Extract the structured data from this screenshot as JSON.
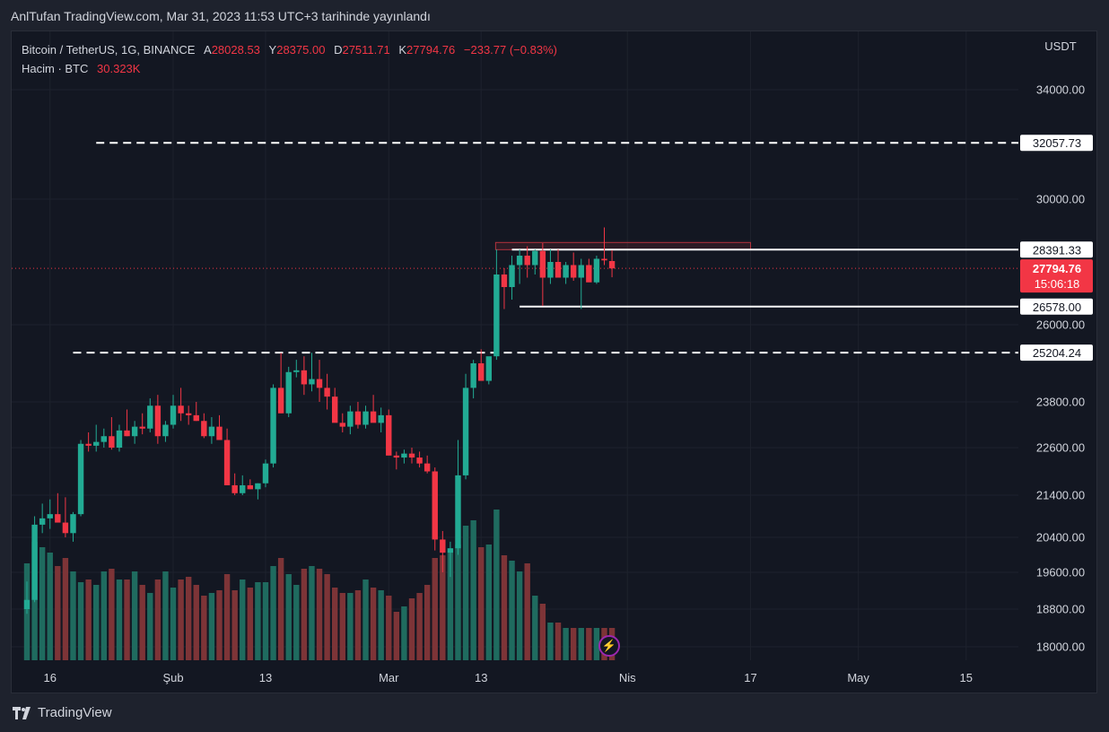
{
  "header": {
    "publish_caption": "AnlTufan TradingView.com, Mar 31, 2023 11:53 UTC+3 tarihinde yayınlandı"
  },
  "legend": {
    "symbol": "Bitcoin / TetherUS, 1G, BINANCE",
    "open_label": "A",
    "open": "28028.53",
    "high_label": "Y",
    "high": "28375.00",
    "low_label": "D",
    "low": "27511.71",
    "close_label": "K",
    "close": "27794.76",
    "change": "−233.77 (−0.83%)",
    "volume_label": "Hacim · BTC",
    "volume": "30.323K"
  },
  "footer": {
    "brand": "TradingView"
  },
  "colors": {
    "up": "#22ab94",
    "down": "#f23645",
    "up_vol": "#1f6b5f",
    "down_vol": "#7d3437",
    "grid": "#1e222d",
    "text": "#d1d4dc"
  },
  "chart_data": {
    "type": "candlestick",
    "axis_currency": "USDT",
    "y_ticks": [
      "34000.00",
      "30000.00",
      "26000.00",
      "23800.00",
      "22600.00",
      "21400.00",
      "20400.00",
      "19600.00",
      "18800.00",
      "18000.00"
    ],
    "x_ticks": [
      {
        "label": "16",
        "date": "2023-01-16"
      },
      {
        "label": "Şub",
        "date": "2023-02-01"
      },
      {
        "label": "13",
        "date": "2023-02-13"
      },
      {
        "label": "Mar",
        "date": "2023-03-01"
      },
      {
        "label": "13",
        "date": "2023-03-13"
      },
      {
        "label": "Nis",
        "date": "2023-04-01"
      },
      {
        "label": "17",
        "date": "2023-04-17"
      },
      {
        "label": "May",
        "date": "2023-05-01"
      },
      {
        "label": "15",
        "date": "2023-05-15"
      }
    ],
    "start_date": "2023-01-13",
    "candles": [
      [
        18800,
        19400,
        18700,
        19000,
        "up"
      ],
      [
        19000,
        20900,
        18950,
        20700,
        "up"
      ],
      [
        20700,
        21200,
        20500,
        20850,
        "up"
      ],
      [
        20850,
        21300,
        20600,
        20950,
        "up"
      ],
      [
        20950,
        21450,
        20800,
        20750,
        "down"
      ],
      [
        20750,
        21350,
        20400,
        20500,
        "down"
      ],
      [
        20500,
        21000,
        20300,
        20950,
        "up"
      ],
      [
        20950,
        22800,
        20900,
        22700,
        "up"
      ],
      [
        22700,
        23000,
        22500,
        22650,
        "down"
      ],
      [
        22650,
        23200,
        22500,
        22750,
        "up"
      ],
      [
        22750,
        23100,
        22600,
        22900,
        "up"
      ],
      [
        22900,
        23400,
        22550,
        22600,
        "down"
      ],
      [
        22600,
        23200,
        22500,
        23050,
        "up"
      ],
      [
        23050,
        23600,
        22900,
        22900,
        "down"
      ],
      [
        22900,
        23300,
        22700,
        23150,
        "up"
      ],
      [
        23150,
        23500,
        22950,
        23100,
        "down"
      ],
      [
        23100,
        23900,
        23000,
        23700,
        "up"
      ],
      [
        23700,
        24000,
        22700,
        22900,
        "down"
      ],
      [
        22900,
        23300,
        22750,
        23200,
        "up"
      ],
      [
        23200,
        24000,
        23100,
        23700,
        "up"
      ],
      [
        23700,
        24200,
        23300,
        23500,
        "down"
      ],
      [
        23500,
        23700,
        23200,
        23450,
        "down"
      ],
      [
        23450,
        23800,
        23300,
        23300,
        "down"
      ],
      [
        23300,
        23500,
        22850,
        22900,
        "down"
      ],
      [
        22900,
        23400,
        22700,
        23150,
        "up"
      ],
      [
        23150,
        23450,
        22800,
        22800,
        "down"
      ],
      [
        22800,
        23100,
        21700,
        21650,
        "down"
      ],
      [
        21650,
        21950,
        21400,
        21450,
        "down"
      ],
      [
        21450,
        21900,
        21400,
        21650,
        "up"
      ],
      [
        21650,
        21800,
        21550,
        21550,
        "down"
      ],
      [
        21550,
        21700,
        21300,
        21700,
        "up"
      ],
      [
        21700,
        22300,
        21600,
        22200,
        "up"
      ],
      [
        22200,
        24300,
        22100,
        24200,
        "up"
      ],
      [
        24200,
        25200,
        23500,
        23500,
        "down"
      ],
      [
        23500,
        24800,
        23400,
        24650,
        "up"
      ],
      [
        24650,
        25000,
        24500,
        24700,
        "up"
      ],
      [
        24700,
        25100,
        24000,
        24300,
        "down"
      ],
      [
        24300,
        25200,
        24100,
        24450,
        "up"
      ],
      [
        24450,
        25000,
        23800,
        24200,
        "down"
      ],
      [
        24200,
        24600,
        23600,
        23950,
        "down"
      ],
      [
        23950,
        24200,
        23300,
        23250,
        "down"
      ],
      [
        23250,
        23500,
        23000,
        23150,
        "down"
      ],
      [
        23150,
        23700,
        22950,
        23550,
        "up"
      ],
      [
        23550,
        23800,
        23100,
        23200,
        "down"
      ],
      [
        23200,
        23700,
        23100,
        23550,
        "up"
      ],
      [
        23550,
        24000,
        23300,
        23250,
        "down"
      ],
      [
        23250,
        23650,
        23000,
        23450,
        "up"
      ],
      [
        23450,
        23600,
        22500,
        22400,
        "down"
      ],
      [
        22400,
        22500,
        22050,
        22350,
        "down"
      ],
      [
        22350,
        22550,
        22200,
        22450,
        "up"
      ],
      [
        22450,
        22600,
        22200,
        22350,
        "down"
      ],
      [
        22350,
        22500,
        22100,
        22200,
        "down"
      ],
      [
        22200,
        22400,
        21950,
        22000,
        "down"
      ],
      [
        22000,
        22100,
        20100,
        20350,
        "down"
      ],
      [
        20350,
        20550,
        19600,
        20050,
        "down"
      ],
      [
        20050,
        20300,
        19500,
        20150,
        "up"
      ],
      [
        20150,
        22800,
        20000,
        21900,
        "up"
      ],
      [
        21900,
        24600,
        21800,
        24200,
        "up"
      ],
      [
        24200,
        25000,
        23900,
        24900,
        "up"
      ],
      [
        24900,
        25300,
        24400,
        24400,
        "down"
      ],
      [
        24400,
        25000,
        24300,
        25100,
        "up"
      ],
      [
        25100,
        28400,
        25000,
        27600,
        "up"
      ],
      [
        27600,
        27800,
        26500,
        27200,
        "down"
      ],
      [
        27200,
        28200,
        26800,
        27900,
        "up"
      ],
      [
        27900,
        28400,
        27300,
        28200,
        "up"
      ],
      [
        28200,
        28500,
        27500,
        27900,
        "down"
      ],
      [
        27900,
        28400,
        27600,
        28350,
        "up"
      ],
      [
        28350,
        28600,
        26600,
        27500,
        "down"
      ],
      [
        27500,
        28400,
        27300,
        28000,
        "up"
      ],
      [
        28000,
        28400,
        27600,
        27500,
        "down"
      ],
      [
        27500,
        28000,
        27300,
        27900,
        "up"
      ],
      [
        27900,
        28300,
        27400,
        27500,
        "down"
      ],
      [
        27500,
        28100,
        26500,
        27900,
        "up"
      ],
      [
        27900,
        28100,
        27400,
        27350,
        "down"
      ],
      [
        27350,
        28200,
        27300,
        28100,
        "up"
      ],
      [
        28100,
        29100,
        27900,
        28050,
        "down"
      ],
      [
        28028.53,
        28375,
        27511.71,
        27794.76,
        "down"
      ]
    ],
    "volumes": [
      180,
      220,
      210,
      200,
      175,
      190,
      165,
      145,
      150,
      140,
      165,
      170,
      150,
      150,
      165,
      140,
      125,
      150,
      165,
      135,
      150,
      155,
      140,
      120,
      125,
      130,
      160,
      130,
      150,
      135,
      145,
      145,
      175,
      190,
      160,
      140,
      170,
      175,
      170,
      160,
      135,
      125,
      125,
      130,
      150,
      135,
      130,
      120,
      90,
      100,
      115,
      125,
      140,
      190,
      195,
      200,
      215,
      250,
      260,
      210,
      215,
      280,
      195,
      185,
      165,
      180,
      120,
      105,
      70,
      70,
      60,
      60,
      60,
      60,
      60,
      60,
      60
    ],
    "volume_axis_max": 500,
    "horizontal_levels": [
      {
        "value": 32057.73,
        "label": "32057.73",
        "style": "dashed"
      },
      {
        "value": 28391.33,
        "label": "28391.33",
        "style": "solid"
      },
      {
        "value": 26578.0,
        "label": "26578.00",
        "style": "solid"
      },
      {
        "value": 25204.24,
        "label": "25204.24",
        "style": "dashed"
      }
    ],
    "current_price": {
      "value": 27794.76,
      "label": "27794.76",
      "countdown": "15:06:18"
    },
    "resistance_box": {
      "from": 28391.33,
      "to": 28620
    }
  }
}
